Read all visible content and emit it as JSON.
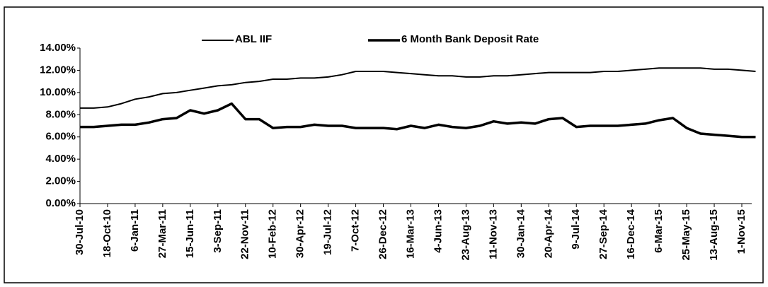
{
  "chart_data": {
    "type": "line",
    "categories": [
      "30-Jul-10",
      null,
      "18-Oct-10",
      null,
      "6-Jan-11",
      null,
      "27-Mar-11",
      null,
      "15-Jun-11",
      null,
      "3-Sep-11",
      null,
      "22-Nov-11",
      null,
      "10-Feb-12",
      null,
      "30-Apr-12",
      null,
      "19-Jul-12",
      null,
      "7-Oct-12",
      null,
      "26-Dec-12",
      null,
      "16-Mar-13",
      null,
      "4-Jun-13",
      null,
      "23-Aug-13",
      null,
      "11-Nov-13",
      null,
      "30-Jan-14",
      null,
      "20-Apr-14",
      null,
      "9-Jul-14",
      null,
      "27-Sep-14",
      null,
      "16-Dec-14",
      null,
      "6-Mar-15",
      null,
      "25-May-15",
      null,
      "13-Aug-15",
      null,
      "1-Nov-15",
      null
    ],
    "series": [
      {
        "name": "ABL IIF",
        "color": "#000000",
        "values": [
          8.6,
          8.6,
          8.7,
          9.0,
          9.4,
          9.6,
          9.9,
          10.0,
          10.2,
          10.4,
          10.6,
          10.7,
          10.9,
          11.0,
          11.2,
          11.2,
          11.3,
          11.3,
          11.4,
          11.6,
          11.9,
          11.9,
          11.9,
          11.8,
          11.7,
          11.6,
          11.5,
          11.5,
          11.4,
          11.4,
          11.5,
          11.5,
          11.6,
          11.7,
          11.8,
          11.8,
          11.8,
          11.8,
          11.9,
          11.9,
          12.0,
          12.1,
          12.2,
          12.2,
          12.2,
          12.2,
          12.1,
          12.1,
          12.0,
          11.9
        ]
      },
      {
        "name": "6 Month Bank Deposit Rate",
        "color": "#000000",
        "values": [
          6.9,
          6.9,
          7.0,
          7.1,
          7.1,
          7.3,
          7.6,
          7.7,
          8.4,
          8.1,
          8.4,
          9.0,
          7.6,
          7.6,
          6.8,
          6.9,
          6.9,
          7.1,
          7.0,
          7.0,
          6.8,
          6.8,
          6.8,
          6.7,
          7.0,
          6.8,
          7.1,
          6.9,
          6.8,
          7.0,
          7.4,
          7.2,
          7.3,
          7.2,
          7.6,
          7.7,
          6.9,
          7.0,
          7.0,
          7.0,
          7.1,
          7.2,
          7.5,
          7.7,
          6.8,
          6.3,
          6.2,
          6.1,
          6.0,
          6.0
        ]
      }
    ],
    "ylim": [
      0,
      14
    ],
    "yticks": [
      {
        "value": 0,
        "label": "0.00%"
      },
      {
        "value": 2,
        "label": "2.00%"
      },
      {
        "value": 4,
        "label": "4.00%"
      },
      {
        "value": 6,
        "label": "6.00%"
      },
      {
        "value": 8,
        "label": "8.00%"
      },
      {
        "value": 10,
        "label": "10.00%"
      },
      {
        "value": 12,
        "label": "12.00%"
      },
      {
        "value": 14,
        "label": "14.00%"
      }
    ],
    "grid": false,
    "legend": "top"
  }
}
